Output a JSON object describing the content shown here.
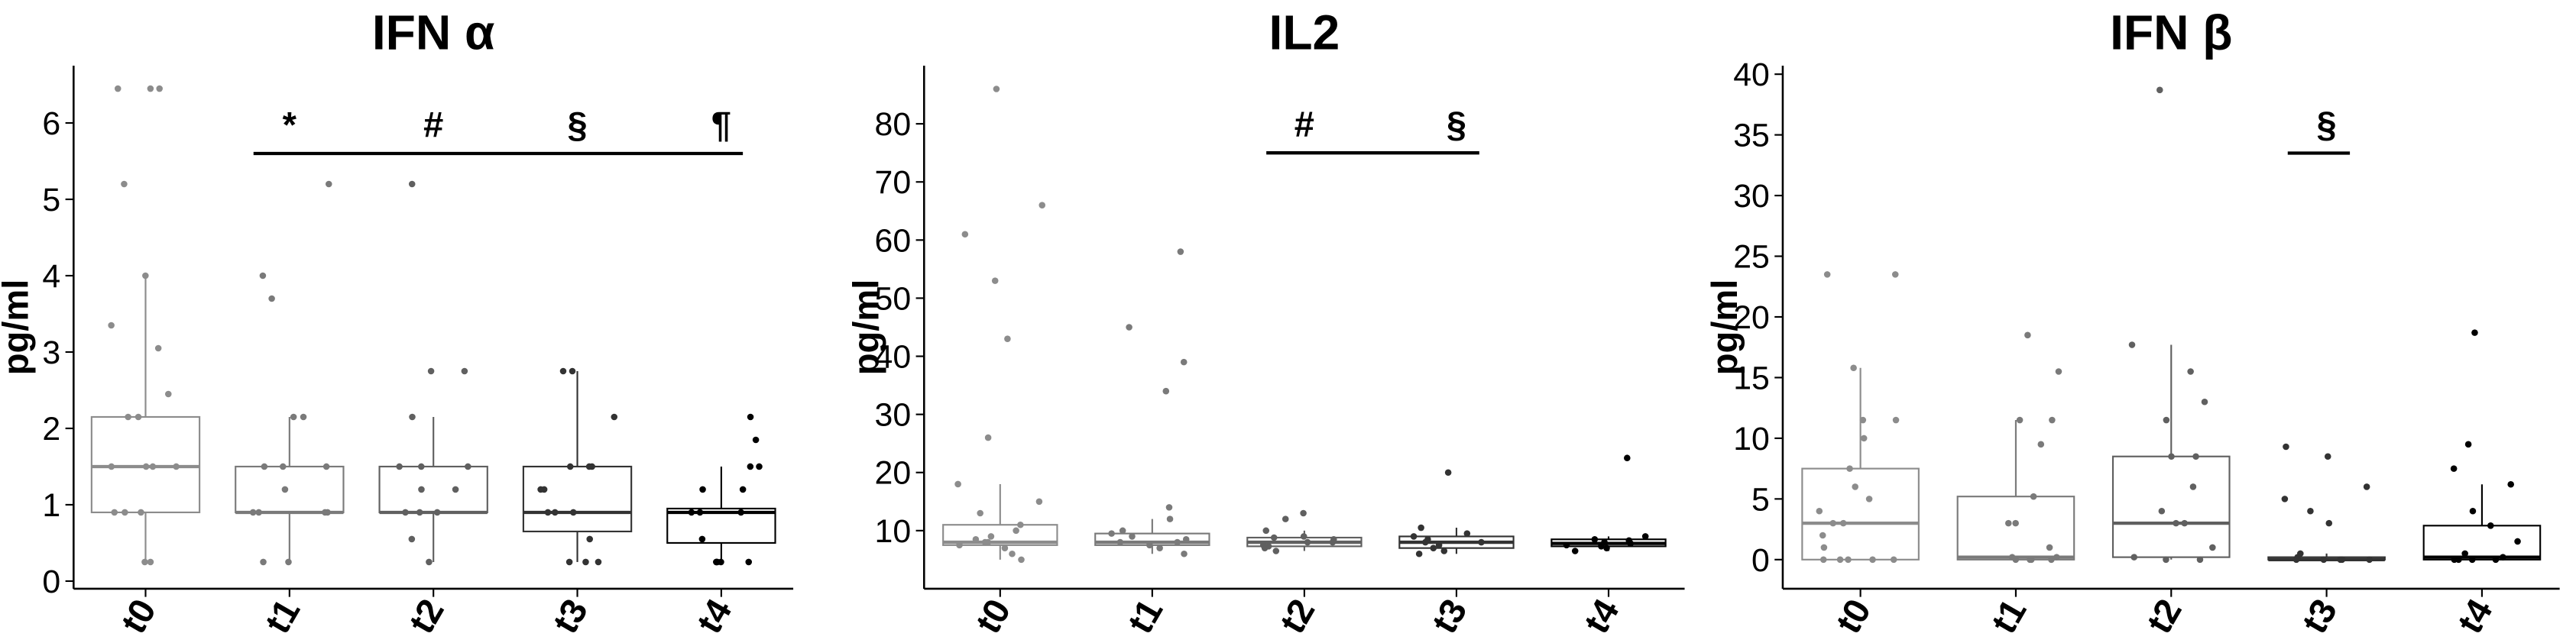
{
  "chart_data": [
    {
      "type": "box",
      "title": "IFN α",
      "ylabel": "pg/ml",
      "ylim": [
        -0.1,
        6.75
      ],
      "yticks": [
        0,
        1,
        2,
        3,
        4,
        5,
        6
      ],
      "categories": [
        "t0",
        "t1",
        "t2",
        "t3",
        "t4"
      ],
      "colors": [
        "#8c8c8c",
        "#7a7a7a",
        "#606060",
        "#333333",
        "#000000"
      ],
      "sig_line_y": 5.6,
      "boxes": [
        {
          "low": 0.25,
          "q1": 0.9,
          "median": 1.5,
          "q3": 2.15,
          "high": 4.0,
          "points": [
            0.25,
            0.25,
            0.9,
            0.9,
            0.9,
            1.5,
            1.5,
            1.5,
            1.5,
            2.15,
            2.15,
            2.45,
            3.05,
            3.35,
            4.0,
            5.2,
            6.45,
            6.45,
            6.45
          ]
        },
        {
          "low": 0.25,
          "q1": 0.9,
          "median": 0.9,
          "q3": 1.5,
          "high": 2.15,
          "sig": "*",
          "points": [
            0.25,
            0.25,
            0.9,
            0.9,
            0.9,
            0.9,
            1.2,
            1.5,
            1.5,
            1.5,
            2.15,
            2.15,
            3.7,
            4.0,
            5.2
          ]
        },
        {
          "low": 0.25,
          "q1": 0.9,
          "median": 0.9,
          "q3": 1.5,
          "high": 2.15,
          "sig": "#",
          "points": [
            0.25,
            0.55,
            0.9,
            0.9,
            0.9,
            1.2,
            1.2,
            1.5,
            1.5,
            1.5,
            2.15,
            2.75,
            2.75,
            5.2
          ]
        },
        {
          "low": 0.25,
          "q1": 0.65,
          "median": 0.9,
          "q3": 1.5,
          "high": 2.75,
          "sig": "§",
          "points": [
            0.25,
            0.25,
            0.25,
            0.55,
            0.9,
            0.9,
            0.9,
            1.2,
            1.2,
            1.5,
            1.5,
            1.5,
            2.15,
            2.75,
            2.75
          ]
        },
        {
          "low": 0.25,
          "q1": 0.5,
          "median": 0.9,
          "q3": 0.95,
          "high": 1.5,
          "sig": "¶",
          "points": [
            0.25,
            0.25,
            0.25,
            0.25,
            0.25,
            0.55,
            0.9,
            0.9,
            0.9,
            1.2,
            1.2,
            1.5,
            1.5,
            1.85,
            2.15
          ]
        }
      ]
    },
    {
      "type": "box",
      "title": "IL2",
      "ylabel": "pg/ml",
      "ylim": [
        0,
        90
      ],
      "yticks": [
        10,
        20,
        30,
        40,
        50,
        60,
        70,
        80
      ],
      "categories": [
        "t0",
        "t1",
        "t2",
        "t3",
        "t4"
      ],
      "colors": [
        "#8c8c8c",
        "#7a7a7a",
        "#606060",
        "#333333",
        "#000000"
      ],
      "sig_line_y": 75,
      "boxes": [
        {
          "low": 5,
          "q1": 7.5,
          "median": 8,
          "q3": 11,
          "high": 18,
          "points": [
            5,
            6,
            7,
            7.5,
            8,
            8,
            8.5,
            9,
            10,
            11,
            13,
            15,
            18,
            26,
            43,
            53,
            61,
            66,
            86
          ]
        },
        {
          "low": 6,
          "q1": 7.5,
          "median": 8,
          "q3": 9.5,
          "high": 12,
          "points": [
            6,
            7,
            7.5,
            8,
            8,
            8.5,
            9,
            9.5,
            10,
            12,
            14,
            34,
            39,
            45,
            58
          ]
        },
        {
          "low": 6.5,
          "q1": 7.3,
          "median": 8,
          "q3": 8.8,
          "high": 10,
          "sig": "#",
          "points": [
            6.5,
            7,
            7.3,
            7.5,
            8,
            8,
            8.5,
            8.8,
            9,
            10,
            12,
            13
          ]
        },
        {
          "low": 6,
          "q1": 7,
          "median": 8,
          "q3": 9,
          "high": 10.5,
          "sig": "§",
          "points": [
            6,
            6.5,
            7,
            7.5,
            8,
            8,
            8.5,
            9,
            9.5,
            10.5,
            20
          ]
        },
        {
          "low": 6.5,
          "q1": 7.3,
          "median": 7.8,
          "q3": 8.5,
          "high": 9,
          "points": [
            6.5,
            7,
            7.3,
            7.5,
            7.8,
            8,
            8.3,
            8.5,
            9,
            22.5
          ]
        }
      ]
    },
    {
      "type": "box",
      "title": "IFN β",
      "ylabel": "pg/ml",
      "ylim": [
        -2.4,
        40.7
      ],
      "yticks": [
        0,
        5,
        10,
        15,
        20,
        25,
        30,
        35,
        40
      ],
      "categories": [
        "t0",
        "t1",
        "t2",
        "t3",
        "t4"
      ],
      "colors": [
        "#8c8c8c",
        "#7a7a7a",
        "#606060",
        "#333333",
        "#000000"
      ],
      "sig_line_y": 33.5,
      "boxes": [
        {
          "low": 0,
          "q1": 0,
          "median": 3,
          "q3": 7.5,
          "high": 15.8,
          "points": [
            0,
            0,
            0,
            0,
            0,
            1,
            2,
            3,
            3,
            4,
            5,
            6,
            7.5,
            10,
            11.5,
            11.5,
            15.8,
            23.5,
            23.5
          ]
        },
        {
          "low": 0,
          "q1": 0,
          "median": 0.2,
          "q3": 5.2,
          "high": 11.5,
          "points": [
            0,
            0,
            0,
            0,
            0.2,
            0.2,
            1,
            3,
            3,
            5.2,
            9.5,
            11.5,
            11.5,
            15.5,
            18.5
          ]
        },
        {
          "low": 0,
          "q1": 0.2,
          "median": 3,
          "q3": 8.5,
          "high": 17.7,
          "points": [
            0,
            0,
            0.2,
            1,
            3,
            3,
            4,
            6,
            8.5,
            8.5,
            11.5,
            13,
            15.5,
            17.7,
            38.7
          ]
        },
        {
          "low": 0,
          "q1": 0,
          "median": 0,
          "q3": 0.2,
          "high": 0.5,
          "sig": "§",
          "points": [
            0,
            0,
            0,
            0,
            0,
            0.2,
            0.5,
            3,
            4,
            5,
            6,
            8.5,
            9.3
          ]
        },
        {
          "low": 0,
          "q1": 0,
          "median": 0.2,
          "q3": 2.8,
          "high": 6.2,
          "points": [
            0,
            0,
            0,
            0,
            0.2,
            0.5,
            1.5,
            2.8,
            4,
            6.2,
            7.5,
            9.5,
            18.7
          ]
        }
      ]
    }
  ]
}
